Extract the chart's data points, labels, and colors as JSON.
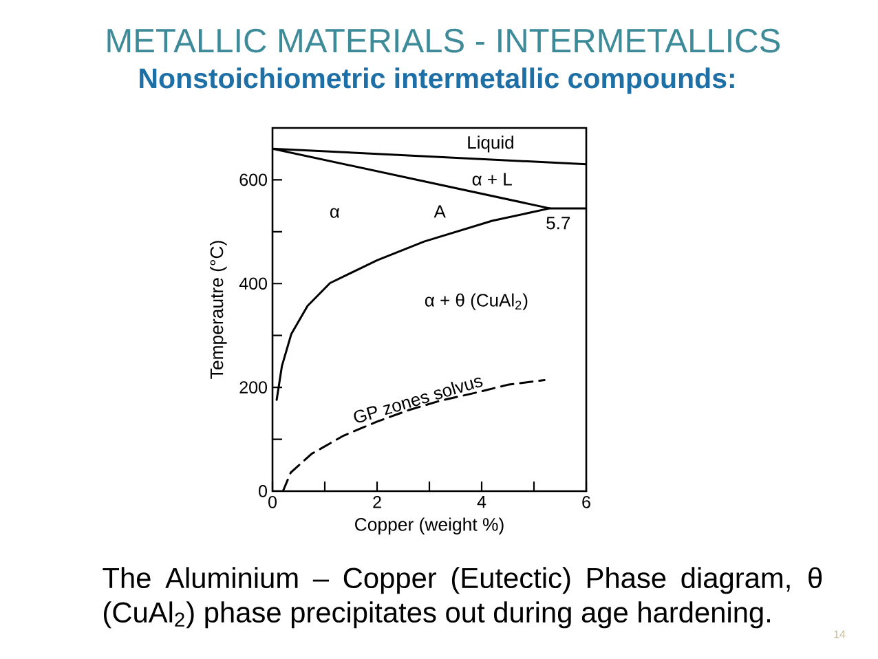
{
  "chart_data": {
    "type": "line",
    "title": "METALLIC MATERIALS - INTERMETALLICS",
    "subtitle": "Nonstoichiometric intermetallic compounds:",
    "xlabel": "Copper (weight %)",
    "ylabel": "Temperautre (°C)",
    "xlim": [
      0,
      6
    ],
    "ylim": [
      0,
      700
    ],
    "xticks": [
      0,
      {
        "value": 1,
        "label": null
      },
      2,
      {
        "value": 3,
        "label": null
      },
      4,
      {
        "value": 5,
        "label": null
      },
      6
    ],
    "yticks": [
      0,
      {
        "value": 100,
        "label": null
      },
      200,
      {
        "value": 300,
        "label": null
      },
      400,
      {
        "value": 500,
        "label": null
      },
      600
    ],
    "series": [
      {
        "color": "#000000",
        "line_style": "solid",
        "x": [
          6,
          0,
          5.3,
          6
        ],
        "values": [
          630,
          660,
          545,
          545
        ]
      },
      {
        "color": "#000000",
        "line_style": "solid",
        "x": [
          0.08,
          0.18,
          0.36,
          0.67,
          1.1,
          2.0,
          2.9,
          4.2,
          5.3
        ],
        "values": [
          176,
          241,
          303,
          357,
          401,
          445,
          481,
          521,
          545
        ]
      },
      {
        "name": "GP zones solvus",
        "color": "#000000",
        "line_style": "dashed",
        "x": [
          0.2,
          0.35,
          0.75,
          1.36,
          2.0,
          2.6,
          3.2,
          3.9,
          4.5,
          5.2
        ],
        "values": [
          0,
          36,
          72,
          107,
          134,
          156,
          174,
          190,
          205,
          214
        ]
      }
    ],
    "annotations": [
      "The Aluminium – Copper (Eutectic) Phase diagram, θ (CuAl$_{2}$) phase precipitates out during age hardening.",
      "14",
      "Liquid",
      "α + L",
      "α",
      "A",
      "α + θ (CuAl$_{2}$)",
      {
        "text": "5.7",
        "x": 5.3,
        "y": 545
      }
    ]
  }
}
